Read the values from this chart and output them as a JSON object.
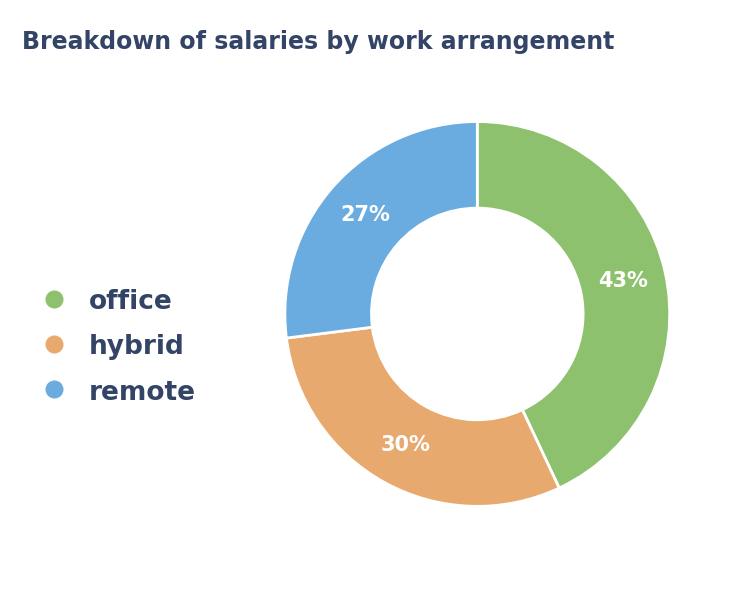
{
  "title": "Breakdown of salaries by work arrangement",
  "labels": [
    "office",
    "hybrid",
    "remote"
  ],
  "values": [
    43,
    30,
    27
  ],
  "colors": [
    "#8dc16e",
    "#e8a96e",
    "#6aace0"
  ],
  "pct_labels": [
    "43%",
    "30%",
    "27%"
  ],
  "donut_width": 0.45,
  "title_fontsize": 17,
  "pct_fontsize": 15,
  "legend_fontsize": 19,
  "background_color": "#ffffff",
  "text_color": "#334466"
}
